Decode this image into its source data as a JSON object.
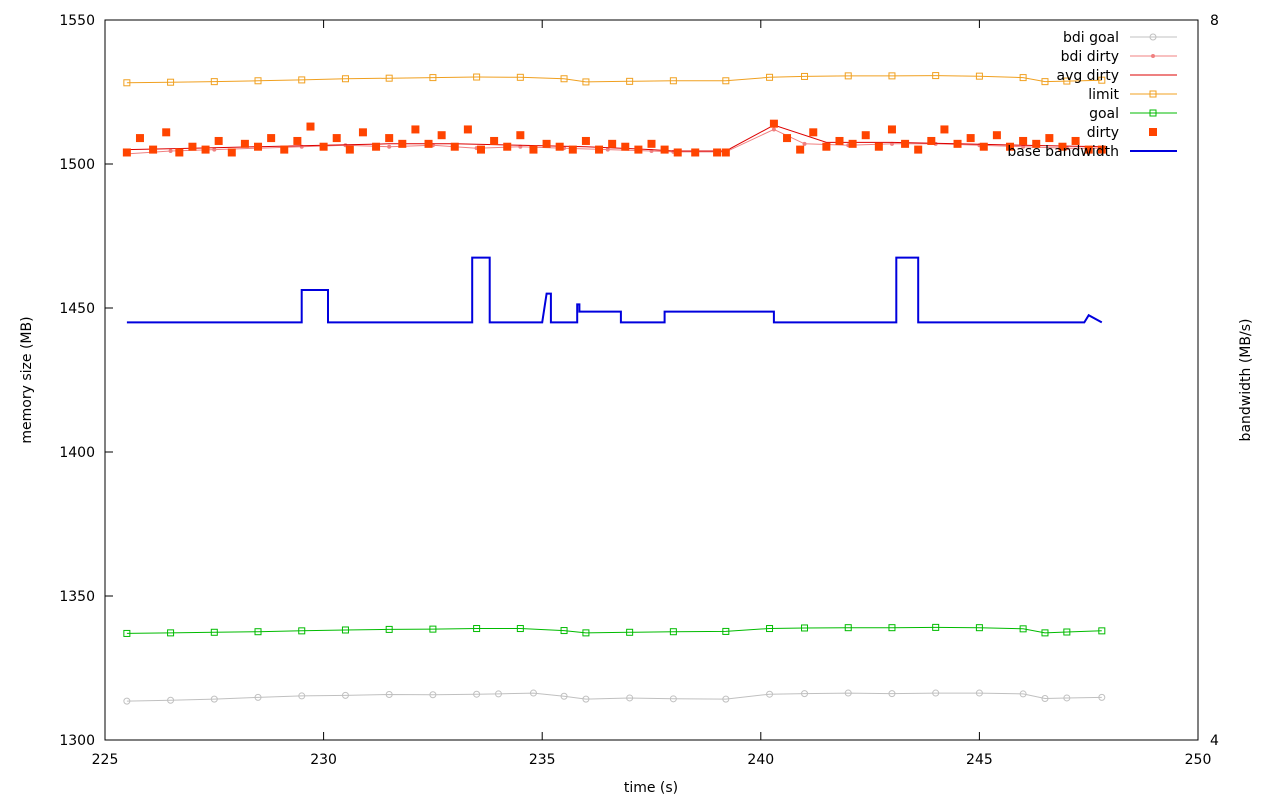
{
  "chart_data": {
    "type": "line",
    "title": "",
    "xlabel": "time (s)",
    "ylabel": "memory size (MB)",
    "y2label": "bandwidth (MB/s)",
    "xlim": [
      225,
      250
    ],
    "ylim": [
      1300,
      1550
    ],
    "y2lim": [
      4,
      8
    ],
    "x_ticks": [
      "225",
      "230",
      "235",
      "240",
      "245",
      "250"
    ],
    "y_ticks": [
      "1300",
      "1350",
      "1400",
      "1450",
      "1500",
      "1550"
    ],
    "y2_ticks": [
      "4",
      "8"
    ],
    "grid": false,
    "legend_position": "top-right",
    "series": [
      {
        "name": "bdi goal",
        "color": "#c0c0c0",
        "marker": "circle",
        "axis": "y",
        "x": [
          225.5,
          226.5,
          227.5,
          228.5,
          229.5,
          230.5,
          231.5,
          232.5,
          233.5,
          234.0,
          234.8,
          235.5,
          236.0,
          237.0,
          238.0,
          239.2,
          240.2,
          241.0,
          242.0,
          243.0,
          244.0,
          245.0,
          246.0,
          246.5,
          247.0,
          247.8
        ],
        "values": [
          1313.5,
          1313.8,
          1314.2,
          1314.8,
          1315.3,
          1315.5,
          1315.8,
          1315.7,
          1315.9,
          1316.0,
          1316.3,
          1315.2,
          1314.2,
          1314.6,
          1314.3,
          1314.2,
          1315.9,
          1316.1,
          1316.3,
          1316.1,
          1316.3,
          1316.3,
          1316.0,
          1314.4,
          1314.6,
          1314.8
        ]
      },
      {
        "name": "bdi dirty",
        "color": "#f08080",
        "marker": "dot",
        "axis": "y",
        "x": [
          225.5,
          226.5,
          227.5,
          228.5,
          229.5,
          230.5,
          231.5,
          232.5,
          233.5,
          234.5,
          235.5,
          236.5,
          237.5,
          238.0,
          239.2,
          240.3,
          241.0,
          242.0,
          243.0,
          244.0,
          245.0,
          246.0,
          247.0,
          247.8
        ],
        "values": [
          1503.5,
          1504.5,
          1505.0,
          1505.5,
          1506.0,
          1506.5,
          1506.0,
          1506.5,
          1505.5,
          1506.0,
          1505.5,
          1505.0,
          1504.5,
          1504.2,
          1504.2,
          1512.0,
          1507.0,
          1506.5,
          1507.0,
          1507.0,
          1506.5,
          1506.0,
          1505.5,
          1505.5
        ]
      },
      {
        "name": "avg dirty",
        "color": "#dd0000",
        "marker": "none",
        "axis": "y",
        "x": [
          225.5,
          227.0,
          228.5,
          230.0,
          231.5,
          233.0,
          234.5,
          236.0,
          237.5,
          238.0,
          239.2,
          240.3,
          241.5,
          243.0,
          244.5,
          246.0,
          247.8
        ],
        "values": [
          1505.0,
          1505.5,
          1506.0,
          1506.5,
          1507.0,
          1507.0,
          1506.5,
          1506.0,
          1505.0,
          1504.5,
          1504.5,
          1513.5,
          1507.5,
          1507.5,
          1507.0,
          1506.5,
          1506.0
        ]
      },
      {
        "name": "limit",
        "color": "#f0a020",
        "marker": "square-open",
        "axis": "y",
        "x": [
          225.5,
          226.5,
          227.5,
          228.5,
          229.5,
          230.5,
          231.5,
          232.5,
          233.5,
          234.5,
          235.5,
          236.0,
          237.0,
          238.0,
          239.2,
          240.2,
          241.0,
          242.0,
          243.0,
          244.0,
          245.0,
          246.0,
          246.5,
          247.0,
          247.8
        ],
        "values": [
          1528.2,
          1528.4,
          1528.6,
          1528.9,
          1529.2,
          1529.6,
          1529.8,
          1530.0,
          1530.2,
          1530.1,
          1529.6,
          1528.5,
          1528.7,
          1528.9,
          1528.9,
          1530.1,
          1530.4,
          1530.6,
          1530.6,
          1530.7,
          1530.5,
          1530.0,
          1528.6,
          1528.8,
          1529.1
        ]
      },
      {
        "name": "goal",
        "color": "#00bb00",
        "marker": "square-open",
        "axis": "y",
        "x": [
          225.5,
          226.5,
          227.5,
          228.5,
          229.5,
          230.5,
          231.5,
          232.5,
          233.5,
          234.5,
          235.5,
          236.0,
          237.0,
          238.0,
          239.2,
          240.2,
          241.0,
          242.0,
          243.0,
          244.0,
          245.0,
          246.0,
          246.5,
          247.0,
          247.8
        ],
        "values": [
          1337.0,
          1337.2,
          1337.4,
          1337.6,
          1337.9,
          1338.2,
          1338.4,
          1338.5,
          1338.7,
          1338.7,
          1338.0,
          1337.2,
          1337.4,
          1337.6,
          1337.7,
          1338.7,
          1338.9,
          1339.0,
          1339.0,
          1339.1,
          1339.0,
          1338.6,
          1337.2,
          1337.5,
          1337.9
        ]
      },
      {
        "name": "dirty",
        "color": "#ff4400",
        "marker": "square-filled",
        "axis": "y",
        "x": [
          225.5,
          225.8,
          226.1,
          226.4,
          226.7,
          227.0,
          227.3,
          227.6,
          227.9,
          228.2,
          228.5,
          228.8,
          229.1,
          229.4,
          229.7,
          230.0,
          230.3,
          230.6,
          230.9,
          231.2,
          231.5,
          231.8,
          232.1,
          232.4,
          232.7,
          233.0,
          233.3,
          233.6,
          233.9,
          234.2,
          234.5,
          234.8,
          235.1,
          235.4,
          235.7,
          236.0,
          236.3,
          236.6,
          236.9,
          237.2,
          237.5,
          237.8,
          238.1,
          238.5,
          239.0,
          239.2,
          240.3,
          240.6,
          240.9,
          241.2,
          241.5,
          241.8,
          242.1,
          242.4,
          242.7,
          243.0,
          243.3,
          243.6,
          243.9,
          244.2,
          244.5,
          244.8,
          245.1,
          245.4,
          245.7,
          246.0,
          246.3,
          246.6,
          246.9,
          247.2,
          247.5,
          247.8
        ],
        "values": [
          1504,
          1509,
          1505,
          1511,
          1504,
          1506,
          1505,
          1508,
          1504,
          1507,
          1506,
          1509,
          1505,
          1508,
          1513,
          1506,
          1509,
          1505,
          1511,
          1506,
          1509,
          1507,
          1512,
          1507,
          1510,
          1506,
          1512,
          1505,
          1508,
          1506,
          1510,
          1505,
          1507,
          1506,
          1505,
          1508,
          1505,
          1507,
          1506,
          1505,
          1507,
          1505,
          1504,
          1504,
          1504,
          1504,
          1514,
          1509,
          1505,
          1511,
          1506,
          1508,
          1507,
          1510,
          1506,
          1512,
          1507,
          1505,
          1508,
          1512,
          1507,
          1509,
          1506,
          1510,
          1506,
          1508,
          1507,
          1509,
          1506,
          1508,
          1505,
          1505
        ]
      },
      {
        "name": "base bandwidth",
        "color": "#0000dd",
        "marker": "none",
        "axis": "y2",
        "step": true,
        "x": [
          225.5,
          229.5,
          229.5,
          230.1,
          230.1,
          233.4,
          233.4,
          233.8,
          233.8,
          235.0,
          235.1,
          235.2,
          235.2,
          235.8,
          235.8,
          235.85,
          235.85,
          236.8,
          236.8,
          237.8,
          237.8,
          240.3,
          240.3,
          243.1,
          243.1,
          243.6,
          243.6,
          247.4,
          247.5,
          247.8
        ],
        "values": [
          6.32,
          6.32,
          6.5,
          6.5,
          6.32,
          6.32,
          6.68,
          6.68,
          6.32,
          6.32,
          6.48,
          6.48,
          6.32,
          6.32,
          6.42,
          6.42,
          6.38,
          6.38,
          6.32,
          6.32,
          6.38,
          6.38,
          6.32,
          6.32,
          6.68,
          6.68,
          6.32,
          6.32,
          6.36,
          6.32
        ]
      }
    ]
  }
}
